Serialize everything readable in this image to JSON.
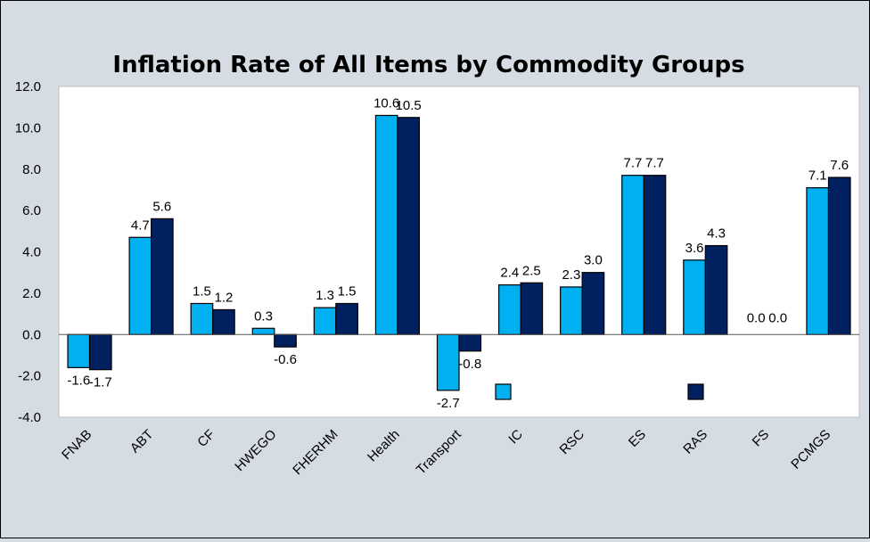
{
  "chart_data": {
    "type": "bar",
    "title": "Inflation Rate of All Items by Commodity Groups",
    "categories": [
      "FNAB",
      "ABT",
      "CF",
      "HWEGO",
      "FHERHM",
      "Health",
      "Transport",
      "IC",
      "RSC",
      "ES",
      "RAS",
      "FS",
      "PCMGS"
    ],
    "series": [
      {
        "values": [
          -1.6,
          4.7,
          1.5,
          0.3,
          1.3,
          10.6,
          -2.7,
          2.4,
          2.3,
          7.7,
          3.6,
          0.0,
          7.1
        ],
        "color": "#00b0f0"
      },
      {
        "values": [
          -1.7,
          5.6,
          1.2,
          -0.6,
          1.5,
          10.5,
          -0.8,
          2.5,
          3.0,
          7.7,
          4.3,
          0.0,
          7.6
        ],
        "color": "#002060"
      }
    ],
    "data_labels": [
      [
        "-1.6",
        "4.7",
        "1.5",
        "0.3",
        "1.3",
        "10.6",
        "-2.7",
        "2.4",
        "2.3",
        "7.7",
        "3.6",
        "0.0",
        "7.1"
      ],
      [
        "-1.7",
        "5.6",
        "1.2",
        "-0.6",
        "1.5",
        "10.5",
        "-0.8",
        "2.5",
        "3.0",
        "7.7",
        "4.3",
        "0.0",
        "7.6"
      ]
    ],
    "ylim": [
      -4.0,
      12.0
    ],
    "yticks": [
      "-4.0",
      "-2.0",
      "0.0",
      "2.0",
      "4.0",
      "6.0",
      "8.0",
      "10.0",
      "12.0"
    ],
    "xlabel": "",
    "ylabel": "",
    "grid": false,
    "legend": {
      "placement": "inside-bottom",
      "entries": [
        "",
        ""
      ]
    }
  }
}
